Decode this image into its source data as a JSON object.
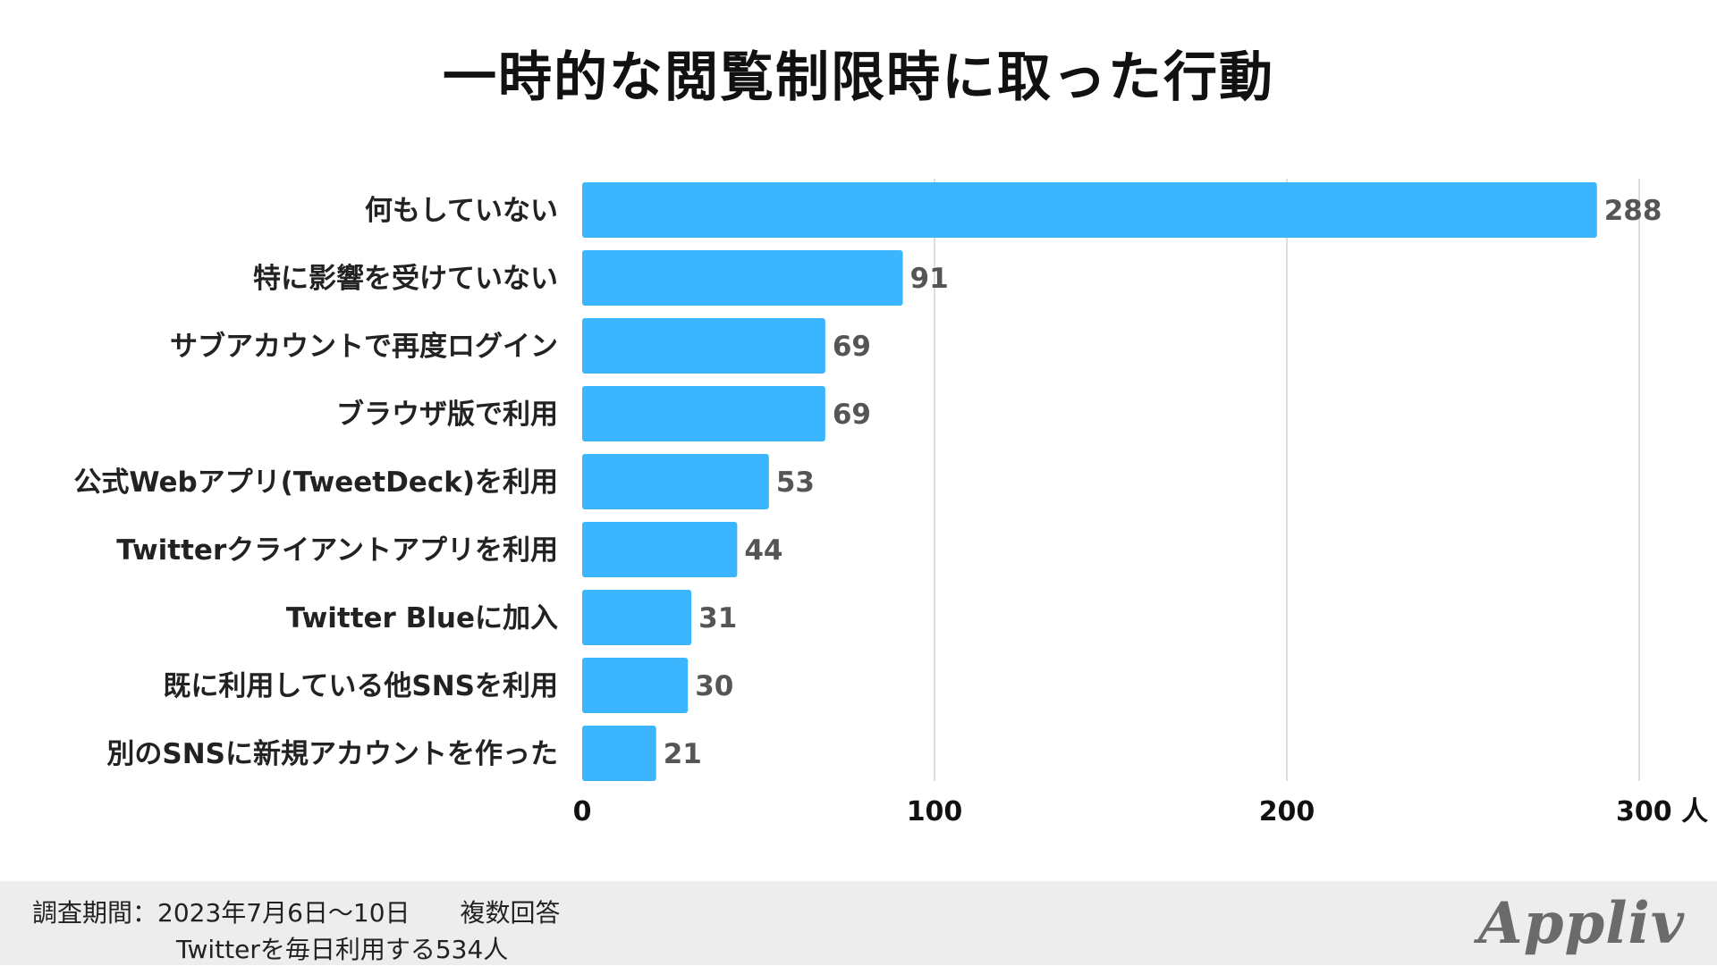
{
  "title": "一時的な閲覧制限時に取った行動",
  "chart_data": {
    "type": "bar",
    "orientation": "horizontal",
    "categories": [
      "何もしていない",
      "特に影響を受けていない",
      "サブアカウントで再度ログイン",
      "ブラウザ版で利用",
      "公式Webアプリ(TweetDeck)を利用",
      "Twitterクライアントアプリを利用",
      "Twitter Blueに加入",
      "既に利用している他SNSを利用",
      "別のSNSに新規アカウントを作った"
    ],
    "values": [
      288,
      91,
      69,
      69,
      53,
      44,
      31,
      30,
      21
    ],
    "value_labels": [
      "288",
      "91",
      "69",
      "69",
      "53",
      "44",
      "31",
      "30",
      "21"
    ],
    "xlim": [
      0,
      300
    ],
    "xticks": [
      "0",
      "100",
      "200",
      "300 人"
    ],
    "grid": true,
    "bar_color": "#3bb5fd",
    "grid_color": "#d3d3d3"
  },
  "footer": {
    "line1": "調査期間：2023年7月6日〜10日　　複数回答",
    "line2": "Twitterを毎日利用する534人",
    "logo": "Appliv"
  }
}
